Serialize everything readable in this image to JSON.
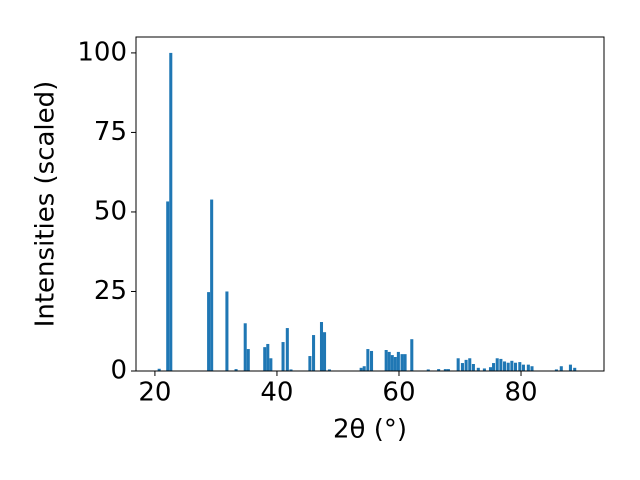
{
  "chart_data": {
    "type": "bar",
    "xlabel": "2θ (°)",
    "ylabel": "Intensities (scaled)",
    "x": [
      20.7,
      22.1,
      22.6,
      28.8,
      29.3,
      31.8,
      33.3,
      34.8,
      35.3,
      38.0,
      38.5,
      39.0,
      41.0,
      41.7,
      42.3,
      45.4,
      46.0,
      47.3,
      47.8,
      48.6,
      53.8,
      54.3,
      54.9,
      55.5,
      57.9,
      58.4,
      58.9,
      59.4,
      59.9,
      60.5,
      61.0,
      62.1,
      64.8,
      66.5,
      67.6,
      68.1,
      69.7,
      70.4,
      71.0,
      71.6,
      72.2,
      73.0,
      74.0,
      75.0,
      75.5,
      76.1,
      76.7,
      77.3,
      77.9,
      78.5,
      79.1,
      79.8,
      80.4,
      81.2,
      81.8,
      85.8,
      86.6,
      88.1,
      88.8
    ],
    "values": [
      0.7,
      53.3,
      100,
      24.8,
      53.9,
      25,
      0.6,
      15,
      6.9,
      7.5,
      8.5,
      4,
      9.1,
      13.5,
      0.5,
      4.7,
      11.3,
      15.4,
      12.2,
      0.5,
      1,
      1.5,
      6.9,
      6.3,
      6.6,
      6.0,
      5.0,
      4.4,
      6.0,
      5.3,
      5.3,
      10,
      0.5,
      0.6,
      0.6,
      0.6,
      4,
      2.5,
      3.5,
      4,
      2.2,
      1,
      0.8,
      1.2,
      2.5,
      4,
      3.8,
      3,
      2.6,
      3.2,
      2.6,
      2.8,
      2,
      2,
      1.5,
      0.5,
      1.5,
      2,
      1
    ],
    "color": "#1f77b4",
    "xlim": [
      16.9,
      93.6
    ],
    "xticks": [
      20,
      40,
      60,
      80
    ],
    "ylim": [
      0,
      105
    ],
    "yticks": [
      0,
      25,
      50,
      75,
      100
    ]
  }
}
